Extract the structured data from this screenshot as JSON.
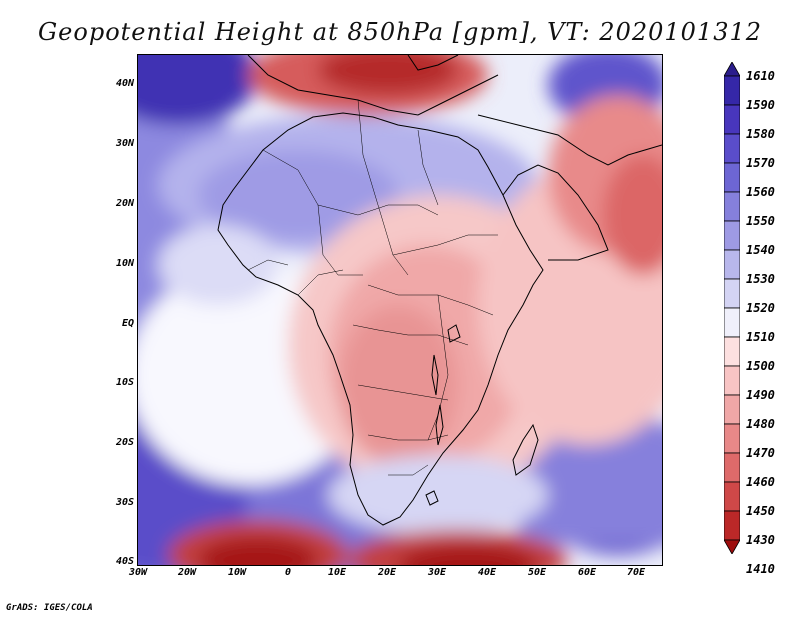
{
  "title": "Geopotential Height at 850hPa [gpm], VT: 2020101312",
  "credit": "GrADS: IGES/COLA",
  "map": {
    "lat_labels": [
      "40N",
      "30N",
      "20N",
      "10N",
      "EQ",
      "10S",
      "20S",
      "30S",
      "40S"
    ],
    "lon_labels": [
      "30W",
      "20W",
      "10W",
      "0",
      "10E",
      "20E",
      "30E",
      "40E",
      "50E",
      "60E",
      "70E"
    ]
  },
  "colorbar": {
    "labels": [
      "1610",
      "1590",
      "1580",
      "1570",
      "1560",
      "1550",
      "1540",
      "1530",
      "1520",
      "1510",
      "1500",
      "1490",
      "1480",
      "1470",
      "1460",
      "1450",
      "1430",
      "1410"
    ],
    "colors": [
      "#2b1d8c",
      "#3527a8",
      "#4836bd",
      "#5a4dcb",
      "#6d66d4",
      "#8580dc",
      "#9e9ae4",
      "#b8b7ec",
      "#d4d4f4",
      "#f0f0fb",
      "#fde0e0",
      "#f8c4c4",
      "#f0a7a7",
      "#e88888",
      "#de6a6a",
      "#cf4848",
      "#bb2828",
      "#9e0d0d"
    ]
  },
  "legend_colors": {
    "high": "#3a2fb0",
    "mid": "#ffffff",
    "low": "#a80f0f"
  }
}
